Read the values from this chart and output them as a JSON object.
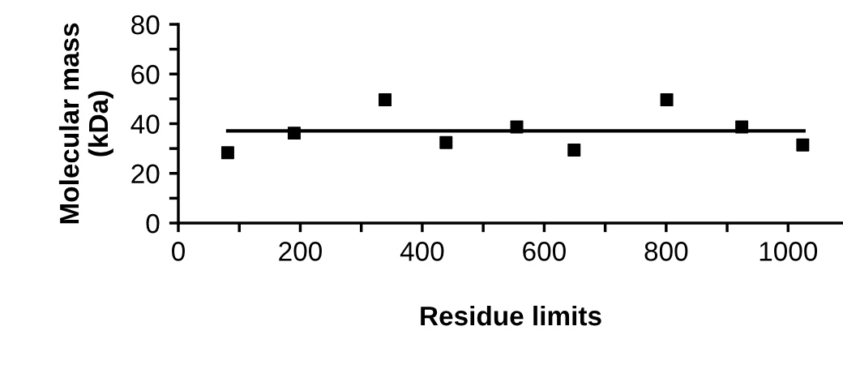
{
  "chart_data": {
    "type": "scatter",
    "xlabel": "Residue limits",
    "ylabel": "Molecular mass\n(kDa)",
    "x": [
      81,
      190,
      339,
      439,
      555,
      649,
      801,
      924,
      1024
    ],
    "series": [
      {
        "color": "#000000",
        "marker": "square",
        "values": [
          28.3,
          36.2,
          49.6,
          32.4,
          38.7,
          29.4,
          49.6,
          38.7,
          31.4
        ]
      },
      {
        "type": "line",
        "color": "#000000",
        "marker": "none",
        "line_style": "solid",
        "x": [
          81,
          1026
        ],
        "values": [
          37.1,
          37.1
        ]
      }
    ],
    "xlim": [
      0,
      1090
    ],
    "ylim": [
      0,
      80
    ],
    "xticks": [
      0,
      {
        "value": 100,
        "label": null
      },
      200,
      {
        "value": 300,
        "label": null
      },
      400,
      {
        "value": 500,
        "label": null
      },
      600,
      {
        "value": 700,
        "label": null
      },
      800,
      {
        "value": 900,
        "label": null
      },
      1000
    ],
    "yticks": [
      0,
      {
        "value": 10,
        "label": null
      },
      20,
      {
        "value": 30,
        "label": null
      },
      40,
      {
        "value": 50,
        "label": null
      },
      60,
      {
        "value": 70,
        "label": null
      },
      80
    ],
    "grid": false,
    "legend": false
  }
}
